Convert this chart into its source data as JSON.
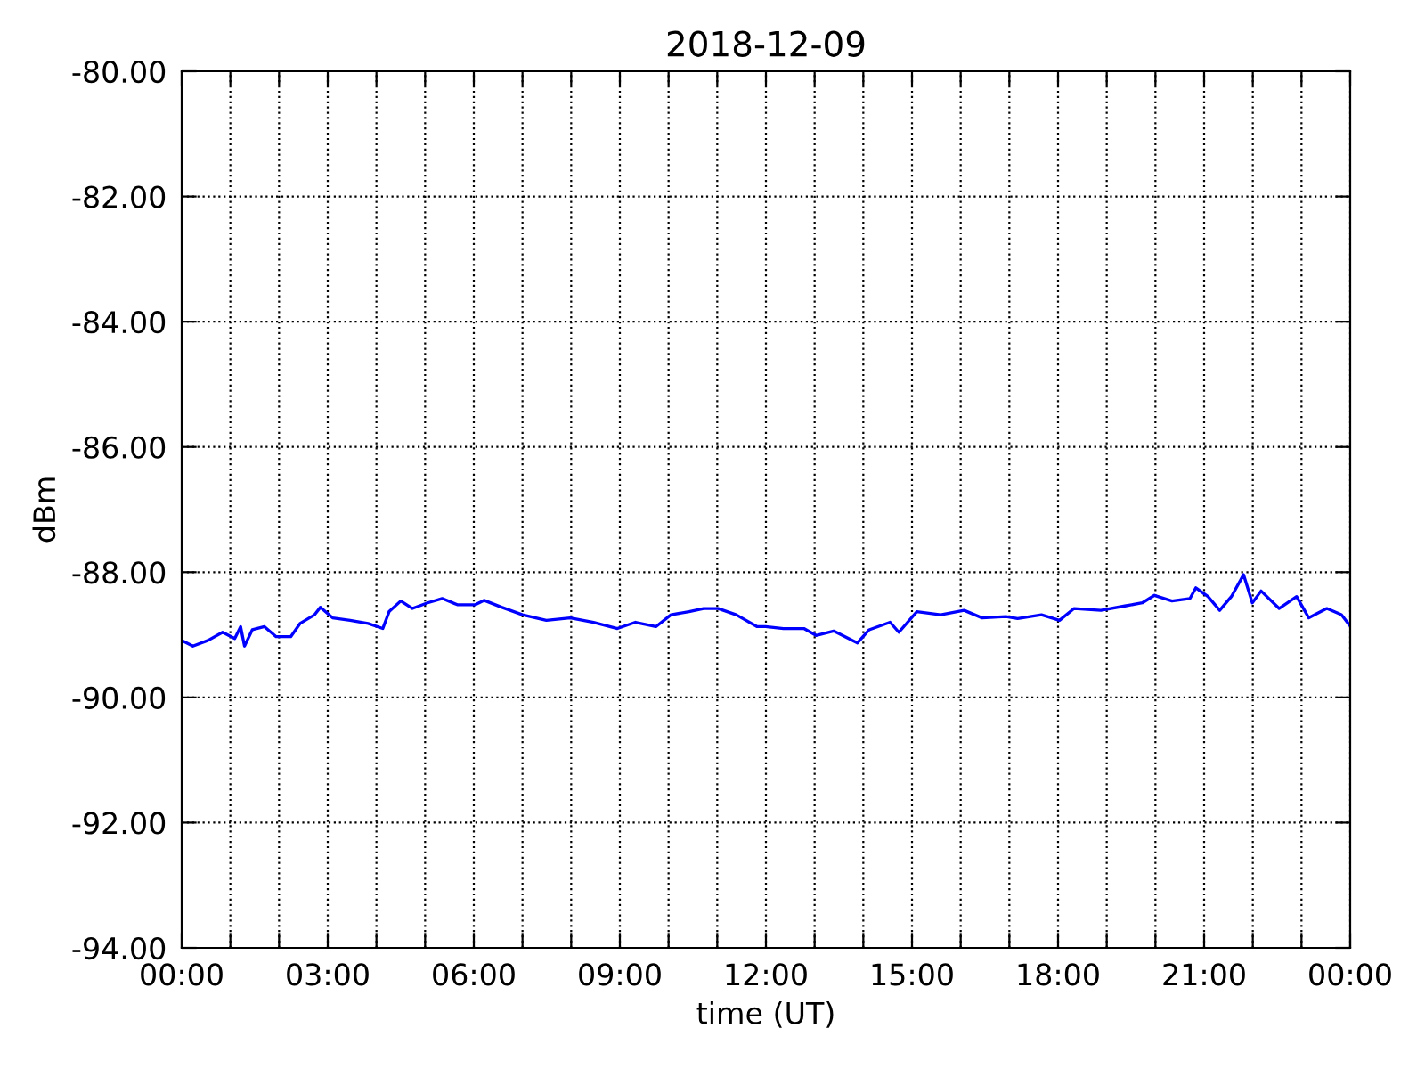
{
  "chart_data": {
    "type": "line",
    "title": "2018-12-09",
    "xlabel": "time (UT)",
    "ylabel": "dBm",
    "x": [
      0.05,
      0.23,
      0.54,
      0.84,
      1.09,
      1.21,
      1.29,
      1.45,
      1.7,
      1.94,
      2.24,
      2.43,
      2.73,
      2.85,
      3.1,
      3.46,
      3.83,
      4.13,
      4.26,
      4.5,
      4.74,
      5.05,
      5.35,
      5.66,
      6.03,
      6.21,
      6.57,
      7.0,
      7.49,
      7.98,
      8.46,
      8.95,
      9.32,
      9.74,
      10.05,
      10.42,
      10.72,
      11.02,
      11.39,
      11.82,
      11.99,
      12.36,
      12.78,
      13.03,
      13.39,
      13.88,
      14.12,
      14.55,
      14.73,
      15.1,
      15.59,
      16.07,
      16.44,
      16.93,
      17.17,
      17.66,
      18.03,
      18.33,
      18.88,
      19.37,
      19.73,
      19.98,
      20.34,
      20.71,
      20.83,
      21.08,
      21.32,
      21.56,
      21.81,
      21.99,
      22.17,
      22.54,
      22.9,
      23.15,
      23.52,
      23.82,
      23.98
    ],
    "series": [
      {
        "color": "#0000ff",
        "values": [
          -89.11,
          -89.18,
          -89.09,
          -88.96,
          -89.06,
          -88.87,
          -89.18,
          -88.92,
          -88.87,
          -89.03,
          -89.03,
          -88.82,
          -88.68,
          -88.56,
          -88.73,
          -88.77,
          -88.82,
          -88.9,
          -88.63,
          -88.46,
          -88.58,
          -88.49,
          -88.42,
          -88.52,
          -88.52,
          -88.45,
          -88.56,
          -88.68,
          -88.77,
          -88.73,
          -88.8,
          -88.9,
          -88.8,
          -88.87,
          -88.68,
          -88.63,
          -88.58,
          -88.58,
          -88.68,
          -88.87,
          -88.87,
          -88.9,
          -88.9,
          -89.01,
          -88.94,
          -89.13,
          -88.92,
          -88.8,
          -88.96,
          -88.63,
          -88.68,
          -88.61,
          -88.73,
          -88.71,
          -88.74,
          -88.68,
          -88.77,
          -88.58,
          -88.61,
          -88.54,
          -88.49,
          -88.37,
          -88.46,
          -88.42,
          -88.25,
          -88.39,
          -88.61,
          -88.39,
          -88.04,
          -88.49,
          -88.3,
          -88.58,
          -88.39,
          -88.73,
          -88.58,
          -88.68,
          -88.84
        ]
      }
    ],
    "xlim": [
      0,
      24
    ],
    "xticks": [
      {
        "value": 0,
        "label": "00:00"
      },
      {
        "value": 1,
        "label": null
      },
      {
        "value": 2,
        "label": null
      },
      {
        "value": 3,
        "label": "03:00"
      },
      {
        "value": 4,
        "label": null
      },
      {
        "value": 5,
        "label": null
      },
      {
        "value": 6,
        "label": "06:00"
      },
      {
        "value": 7,
        "label": null
      },
      {
        "value": 8,
        "label": null
      },
      {
        "value": 9,
        "label": "09:00"
      },
      {
        "value": 10,
        "label": null
      },
      {
        "value": 11,
        "label": null
      },
      {
        "value": 12,
        "label": "12:00"
      },
      {
        "value": 13,
        "label": null
      },
      {
        "value": 14,
        "label": null
      },
      {
        "value": 15,
        "label": "15:00"
      },
      {
        "value": 16,
        "label": null
      },
      {
        "value": 17,
        "label": null
      },
      {
        "value": 18,
        "label": "18:00"
      },
      {
        "value": 19,
        "label": null
      },
      {
        "value": 20,
        "label": null
      },
      {
        "value": 21,
        "label": "21:00"
      },
      {
        "value": 22,
        "label": null
      },
      {
        "value": 23,
        "label": null
      },
      {
        "value": 24,
        "label": "00:00"
      }
    ],
    "ylim": [
      -94,
      -80
    ],
    "yticks": [
      {
        "value": -94,
        "label": "-94.00"
      },
      {
        "value": -92,
        "label": "-92.00"
      },
      {
        "value": -90,
        "label": "-90.00"
      },
      {
        "value": -88,
        "label": "-88.00"
      },
      {
        "value": -86,
        "label": "-86.00"
      },
      {
        "value": -84,
        "label": "-84.00"
      },
      {
        "value": -82,
        "label": "-82.00"
      },
      {
        "value": -80,
        "label": "-80.00"
      }
    ],
    "grid": true,
    "line_style": "solid",
    "marker": "none"
  }
}
